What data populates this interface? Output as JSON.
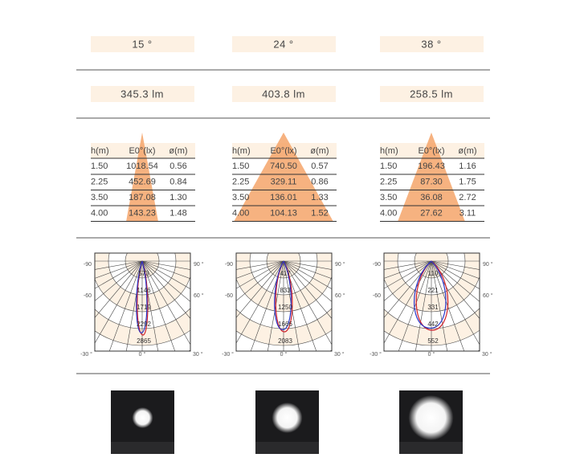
{
  "table_header": [
    "h(m)",
    "E0°(lx)",
    "ø(m)"
  ],
  "polar_labels": {
    "left_top": "-90",
    "right_top": "90 °",
    "left_mid": "-60",
    "right_mid": "60 °",
    "left_bottom": "-30 °",
    "center_bottom": "0 °",
    "right_bottom": "30 °"
  },
  "columns": [
    {
      "beam": "15 °",
      "flux": "345.3 lm",
      "rows": [
        [
          "1.50",
          "1018.54",
          "0.56"
        ],
        [
          "2.25",
          "452.69",
          "0.84"
        ],
        [
          "3.50",
          "187.08",
          "1.30"
        ],
        [
          "4.00",
          "143.23",
          "1.48"
        ]
      ],
      "rings": [
        "573",
        "1146",
        "1719",
        "2292",
        "2865"
      ]
    },
    {
      "beam": "24 °",
      "flux": "403.8 lm",
      "rows": [
        [
          "1.50",
          "740.50",
          "0.57"
        ],
        [
          "2.25",
          "329.11",
          "0.86"
        ],
        [
          "3.50",
          "136.01",
          "1.33"
        ],
        [
          "4.00",
          "104.13",
          "1.52"
        ]
      ],
      "rings": [
        "417",
        "833",
        "1250",
        "1666",
        "2083"
      ]
    },
    {
      "beam": "38 °",
      "flux": "258.5 lm",
      "rows": [
        [
          "1.50",
          "196.43",
          "1.16"
        ],
        [
          "2.25",
          "87.30",
          "1.75"
        ],
        [
          "3.50",
          "36.08",
          "2.72"
        ],
        [
          "4.00",
          "27.62",
          "3.11"
        ]
      ],
      "rings": [
        "110",
        "221",
        "331",
        "442",
        "552"
      ]
    }
  ]
}
